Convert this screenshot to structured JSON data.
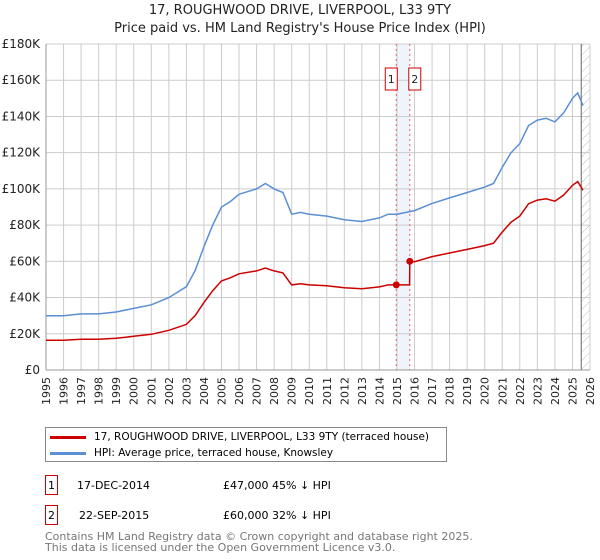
{
  "chart_data": {
    "type": "line",
    "title": "17, ROUGHWOOD DRIVE, LIVERPOOL, L33 9TY",
    "subtitle": "Price paid vs. HM Land Registry's House Price Index (HPI)",
    "ylim": [
      0,
      180000
    ],
    "xlim": [
      1995,
      2026
    ],
    "y_ticks": [
      0,
      20000,
      40000,
      60000,
      80000,
      100000,
      120000,
      140000,
      160000,
      180000
    ],
    "y_tick_labels": [
      "£0",
      "£20K",
      "£40K",
      "£60K",
      "£80K",
      "£100K",
      "£120K",
      "£140K",
      "£160K",
      "£180K"
    ],
    "x_ticks": [
      "1995",
      "1996",
      "1997",
      "1998",
      "1999",
      "2000",
      "2001",
      "2002",
      "2003",
      "2004",
      "2005",
      "2006",
      "2007",
      "2008",
      "2009",
      "2010",
      "2011",
      "2012",
      "2013",
      "2014",
      "2015",
      "2016",
      "2017",
      "2018",
      "2019",
      "2020",
      "2021",
      "2022",
      "2023",
      "2024",
      "2025",
      "2026"
    ],
    "grid": true,
    "series": [
      {
        "name": "17, ROUGHWOOD DRIVE, LIVERPOOL, L33 9TY (terraced house)",
        "color": "#cc0000",
        "x": [
          1995,
          1996,
          1997,
          1998,
          1999,
          2000,
          2001,
          2002,
          2003,
          2003.5,
          2004,
          2004.5,
          2005,
          2005.5,
          2006,
          2007,
          2007.5,
          2008,
          2008.5,
          2009,
          2009.5,
          2010,
          2011,
          2012,
          2013,
          2014,
          2014.5,
          2014.96,
          2015.72,
          2015.73,
          2016,
          2017,
          2018,
          2019,
          2020,
          2020.5,
          2021,
          2021.5,
          2022,
          2022.5,
          2023,
          2023.5,
          2024,
          2024.5,
          2025,
          2025.3,
          2025.6
        ],
        "y": [
          16400,
          16400,
          17000,
          17000,
          17500,
          18600,
          19700,
          21900,
          25200,
          30100,
          37200,
          43800,
          49200,
          50900,
          53100,
          54700,
          56300,
          54700,
          53600,
          47000,
          47600,
          47000,
          46500,
          45400,
          44900,
          45900,
          47000,
          47000,
          47000,
          60000,
          59800,
          62600,
          64600,
          66600,
          68700,
          70000,
          76200,
          81600,
          85000,
          91800,
          93800,
          94500,
          93200,
          96600,
          102000,
          104000,
          99300
        ]
      },
      {
        "name": "HPI: Average price, terraced house, Knowsley",
        "color": "#5b8fd4",
        "x": [
          1995,
          1996,
          1997,
          1998,
          1999,
          2000,
          2001,
          2002,
          2003,
          2003.5,
          2004,
          2004.5,
          2005,
          2005.5,
          2006,
          2007,
          2007.5,
          2008,
          2008.5,
          2009,
          2009.5,
          2010,
          2011,
          2012,
          2013,
          2014,
          2014.5,
          2015,
          2016,
          2017,
          2018,
          2019,
          2020,
          2020.5,
          2021,
          2021.5,
          2022,
          2022.5,
          2023,
          2023.5,
          2024,
          2024.5,
          2025,
          2025.3,
          2025.6
        ],
        "y": [
          30000,
          30000,
          31000,
          31000,
          32000,
          34000,
          36000,
          40000,
          46000,
          55000,
          68000,
          80000,
          90000,
          93000,
          97000,
          100000,
          103000,
          100000,
          98000,
          86000,
          87000,
          86000,
          85000,
          83000,
          82000,
          84000,
          86000,
          86000,
          88000,
          92000,
          95000,
          98000,
          101000,
          103000,
          112000,
          120000,
          125000,
          135000,
          138000,
          139000,
          137000,
          142000,
          150000,
          153000,
          146000
        ]
      }
    ],
    "sales": [
      {
        "id": "1",
        "x": 2014.96,
        "price": 47000,
        "date": "17-DEC-2014",
        "price_label": "£47,000",
        "hpi_label": "45% ↓ HPI"
      },
      {
        "id": "2",
        "x": 2015.73,
        "price": 60000,
        "date": "22-SEP-2015",
        "price_label": "£60,000",
        "hpi_label": "32% ↓ HPI"
      }
    ],
    "forecast_start": 2025.5
  },
  "legend": {
    "red": "17, ROUGHWOOD DRIVE, LIVERPOOL, L33 9TY (terraced house)",
    "blue": "HPI: Average price, terraced house, Knowsley"
  },
  "footer": {
    "line1": "Contains HM Land Registry data © Crown copyright and database right 2025.",
    "line2": "This data is licensed under the Open Government Licence v3.0."
  }
}
